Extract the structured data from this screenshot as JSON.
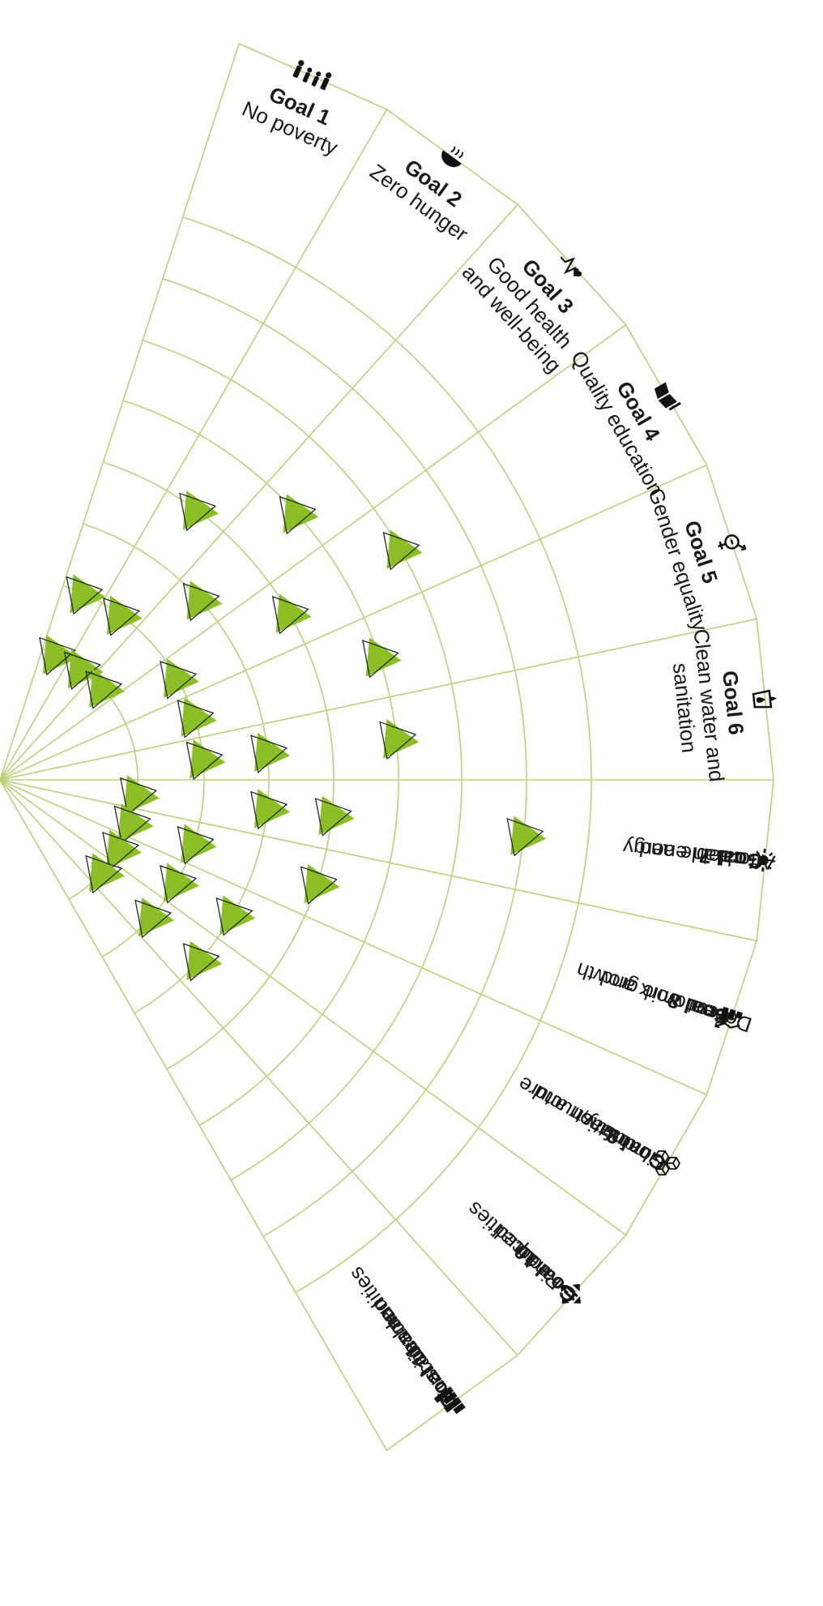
{
  "colors": {
    "grid": "#b9d27a",
    "marker_fill": "#8cbf26",
    "marker_outline": "#1f2a1f",
    "text": "#1a1a1a",
    "icon": "#111111"
  },
  "sectors": [
    {
      "goal": "Goal 1",
      "title": [
        "No poverty"
      ],
      "icon": "family-icon"
    },
    {
      "goal": "Goal 2",
      "title": [
        "Zero hunger"
      ],
      "icon": "food-bowl-icon"
    },
    {
      "goal": "Goal 3",
      "title": [
        "Good health",
        "and well-being"
      ],
      "icon": "heartbeat-icon"
    },
    {
      "goal": "Goal 4",
      "title": [
        "Quality education"
      ],
      "icon": "book-pencil-icon"
    },
    {
      "goal": "Goal 5",
      "title": [
        "Gender equality"
      ],
      "icon": "gender-symbol-icon"
    },
    {
      "goal": "Goal 6",
      "title": [
        "Clean water and",
        "sanitation"
      ],
      "icon": "water-drop-glass-icon"
    },
    {
      "goal": "Goal 7",
      "title": [
        "Affordable and",
        "clean energy"
      ],
      "icon": "sun-power-icon"
    },
    {
      "goal": "Goal 8",
      "title": [
        "Decent work and",
        "economic growth"
      ],
      "icon": "growth-chart-icon"
    },
    {
      "goal": "Goal 9",
      "title": [
        "Industry,",
        "innovation and",
        "infrastructure"
      ],
      "icon": "cubes-icon"
    },
    {
      "goal": "Goal 10",
      "title": [
        "Reduced",
        "inequalities"
      ],
      "icon": "equality-arrows-icon"
    },
    {
      "goal": "Goal 11",
      "title": [
        "Sustainable",
        "cities and",
        "communities"
      ],
      "icon": "city-buildings-icon"
    }
  ],
  "markers": [
    {
      "sector": 1,
      "ring": 1
    },
    {
      "sector": 1,
      "ring": 2
    },
    {
      "sector": 2,
      "ring": 1
    },
    {
      "sector": 2,
      "ring": 2
    },
    {
      "sector": 2,
      "ring": 4
    },
    {
      "sector": 3,
      "ring": 1
    },
    {
      "sector": 3,
      "ring": 3
    },
    {
      "sector": 3,
      "ring": 5
    },
    {
      "sector": 4,
      "ring": 2
    },
    {
      "sector": 4,
      "ring": 4
    },
    {
      "sector": 4,
      "ring": 6
    },
    {
      "sector": 5,
      "ring": 2
    },
    {
      "sector": 5,
      "ring": 5
    },
    {
      "sector": 6,
      "ring": 2
    },
    {
      "sector": 6,
      "ring": 3
    },
    {
      "sector": 6,
      "ring": 5
    },
    {
      "sector": 7,
      "ring": 1
    },
    {
      "sector": 7,
      "ring": 3
    },
    {
      "sector": 7,
      "ring": 4
    },
    {
      "sector": 7,
      "ring": 7
    },
    {
      "sector": 8,
      "ring": 1
    },
    {
      "sector": 8,
      "ring": 2
    },
    {
      "sector": 8,
      "ring": 4
    },
    {
      "sector": 9,
      "ring": 1
    },
    {
      "sector": 9,
      "ring": 2
    },
    {
      "sector": 9,
      "ring": 3
    },
    {
      "sector": 10,
      "ring": 1
    },
    {
      "sector": 10,
      "ring": 2
    },
    {
      "sector": 10,
      "ring": 3
    }
  ]
}
